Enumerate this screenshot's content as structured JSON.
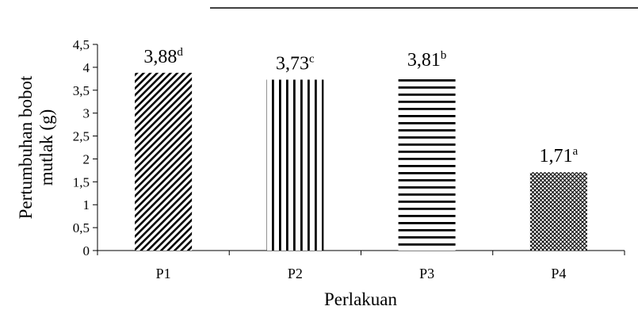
{
  "chart_data": {
    "type": "bar",
    "categories": [
      "P1",
      "P2",
      "P3",
      "P4"
    ],
    "values": [
      3.88,
      3.73,
      3.81,
      1.71
    ],
    "data_labels": [
      "3,88",
      "3,73",
      "3,81",
      "1,71"
    ],
    "significance_letters": [
      "d",
      "c",
      "b",
      "a"
    ],
    "bar_patterns": [
      "diagonal-stripes",
      "vertical-stripes",
      "horizontal-stripes",
      "crosshatch"
    ],
    "xlabel": "Perlakuan",
    "ylabel_lines": [
      "Pertumbuhan  bobot",
      "mutlak  (g)"
    ],
    "ylim": [
      0,
      4.5
    ],
    "y_ticks": [
      0,
      0.5,
      1,
      1.5,
      2,
      2.5,
      3,
      3.5,
      4,
      4.5
    ],
    "y_tick_labels": [
      "0",
      "0,5",
      "1",
      "1,5",
      "2",
      "2,5",
      "3",
      "3,5",
      "4",
      "4,5"
    ],
    "grid": false,
    "legend": "none",
    "bar_color": "#000000"
  }
}
